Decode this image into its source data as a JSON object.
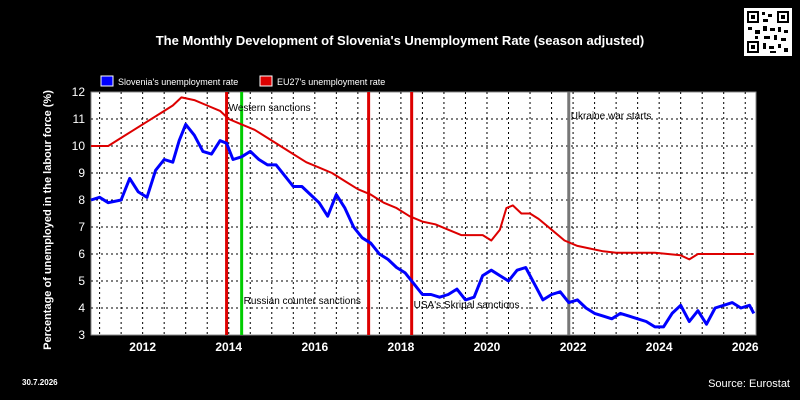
{
  "chart_data": {
    "type": "line",
    "title": "The Monthly Development of Slovenia's Unemployment Rate (season adjusted)",
    "ylabel": "Percentage of unemployed in the labour force (%)",
    "xlabel": "",
    "xlim": [
      2010.8,
      2026.25
    ],
    "ylim": [
      3,
      12
    ],
    "yticks": [
      3,
      4,
      5,
      6,
      7,
      8,
      9,
      10,
      11,
      12
    ],
    "xticks": [
      2012,
      2014,
      2016,
      2018,
      2020,
      2022,
      2024,
      2026
    ],
    "grid": true,
    "legend": "top-left",
    "series": [
      {
        "name": "Slovenia's unemployment rate",
        "color": "#0000ff",
        "x": [
          2010.8,
          2011.0,
          2011.2,
          2011.5,
          2011.7,
          2011.9,
          2012.1,
          2012.3,
          2012.5,
          2012.7,
          2012.85,
          2013.0,
          2013.2,
          2013.4,
          2013.6,
          2013.8,
          2013.95,
          2014.1,
          2014.3,
          2014.5,
          2014.7,
          2014.9,
          2015.1,
          2015.3,
          2015.5,
          2015.7,
          2015.9,
          2016.1,
          2016.3,
          2016.5,
          2016.7,
          2016.9,
          2017.1,
          2017.3,
          2017.5,
          2017.7,
          2017.9,
          2018.1,
          2018.3,
          2018.5,
          2018.7,
          2018.9,
          2019.1,
          2019.3,
          2019.5,
          2019.7,
          2019.9,
          2020.1,
          2020.3,
          2020.5,
          2020.7,
          2020.9,
          2021.1,
          2021.3,
          2021.5,
          2021.7,
          2021.9,
          2022.1,
          2022.3,
          2022.5,
          2022.7,
          2022.9,
          2023.1,
          2023.3,
          2023.5,
          2023.7,
          2023.9,
          2024.1,
          2024.3,
          2024.5,
          2024.7,
          2024.9,
          2025.1,
          2025.3,
          2025.5,
          2025.7,
          2025.9,
          2026.1,
          2026.2
        ],
        "values": [
          8.0,
          8.1,
          7.9,
          8.0,
          8.8,
          8.3,
          8.1,
          9.1,
          9.5,
          9.4,
          10.2,
          10.8,
          10.4,
          9.8,
          9.7,
          10.2,
          10.1,
          9.5,
          9.6,
          9.8,
          9.5,
          9.3,
          9.3,
          8.9,
          8.5,
          8.5,
          8.2,
          7.9,
          7.4,
          8.2,
          7.7,
          7.0,
          6.6,
          6.4,
          6.0,
          5.8,
          5.5,
          5.3,
          4.9,
          4.5,
          4.5,
          4.4,
          4.5,
          4.7,
          4.3,
          4.4,
          5.2,
          5.4,
          5.2,
          5.0,
          5.4,
          5.5,
          4.9,
          4.3,
          4.5,
          4.6,
          4.2,
          4.3,
          4.0,
          3.8,
          3.7,
          3.6,
          3.8,
          3.7,
          3.6,
          3.5,
          3.3,
          3.3,
          3.8,
          4.1,
          3.5,
          3.9,
          3.4,
          4.0,
          4.1,
          4.2,
          4.0,
          4.1,
          3.8
        ]
      },
      {
        "name": "EU27's unemployment rate",
        "color": "#dd0000",
        "x": [
          2010.8,
          2011.2,
          2011.5,
          2011.8,
          2012.1,
          2012.4,
          2012.7,
          2012.9,
          2013.2,
          2013.5,
          2013.8,
          2014.0,
          2014.3,
          2014.6,
          2014.9,
          2015.2,
          2015.5,
          2015.8,
          2016.1,
          2016.4,
          2016.7,
          2017.0,
          2017.3,
          2017.6,
          2017.9,
          2018.2,
          2018.5,
          2018.8,
          2019.1,
          2019.4,
          2019.7,
          2019.9,
          2020.1,
          2020.3,
          2020.45,
          2020.6,
          2020.8,
          2021.0,
          2021.2,
          2021.5,
          2021.8,
          2022.1,
          2022.4,
          2022.7,
          2023.0,
          2023.3,
          2023.6,
          2023.9,
          2024.2,
          2024.5,
          2024.7,
          2024.9,
          2025.2,
          2025.5,
          2025.8,
          2026.0,
          2026.2
        ],
        "values": [
          10.0,
          10.0,
          10.3,
          10.6,
          10.9,
          11.2,
          11.5,
          11.8,
          11.7,
          11.5,
          11.3,
          11.0,
          10.8,
          10.6,
          10.3,
          10.0,
          9.7,
          9.4,
          9.2,
          9.0,
          8.7,
          8.4,
          8.2,
          7.9,
          7.7,
          7.4,
          7.2,
          7.1,
          6.9,
          6.7,
          6.7,
          6.7,
          6.5,
          6.9,
          7.7,
          7.8,
          7.5,
          7.5,
          7.3,
          6.9,
          6.5,
          6.3,
          6.2,
          6.1,
          6.05,
          6.05,
          6.05,
          6.05,
          6.0,
          5.95,
          5.8,
          6.0,
          6.0,
          6.0,
          6.0,
          6.0,
          6.0
        ]
      }
    ],
    "events": [
      {
        "x": 2013.95,
        "color": "#dd0000",
        "label": "Western sanctions",
        "label_y": 11.3
      },
      {
        "x": 2014.3,
        "color": "#00cc00",
        "label": "Russian counter sanctions",
        "label_y": 4.15
      },
      {
        "x": 2017.25,
        "color": "#dd0000",
        "label": "",
        "label_y": 0
      },
      {
        "x": 2018.25,
        "color": "#dd0000",
        "label": "USA's Skripal sanctions",
        "label_y": 4.0
      },
      {
        "x": 2021.9,
        "color": "#777777",
        "label": "Ukraine war starts",
        "label_y": 11.0
      }
    ]
  },
  "footer": {
    "date": "30.7.2026",
    "source": "Source: Eurostat"
  },
  "qr_icon": "qr-code-icon"
}
